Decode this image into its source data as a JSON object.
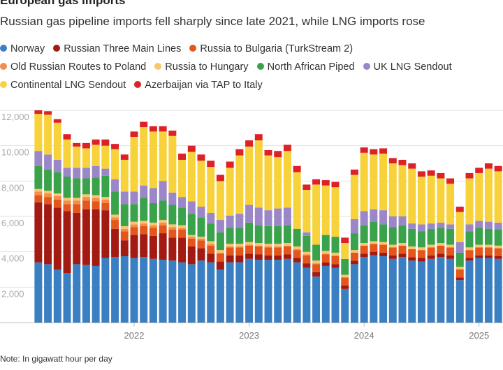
{
  "title": "European gas imports",
  "subtitle": "Russian gas pipeline imports fell sharply since late 2021, while LNG imports rose",
  "note": "Note: In gigawatt hour per day",
  "legend": [
    {
      "label": "Norway",
      "color": "#3a7fc1"
    },
    {
      "label": "Russian Three Main Lines",
      "color": "#a31a12"
    },
    {
      "label": "Russia to Bulgaria (TurkStream 2)",
      "color": "#e3571c"
    },
    {
      "label": "Old Russian Routes to Poland",
      "color": "#f28e4a"
    },
    {
      "label": "Russia to Hungary",
      "color": "#f9c56e"
    },
    {
      "label": "North African Piped",
      "color": "#3aa24a"
    },
    {
      "label": "UK LNG Sendout",
      "color": "#9b86c8"
    },
    {
      "label": "Continental LNG Sendout",
      "color": "#f8d23a"
    },
    {
      "label": "Azerbaijan via TAP to Italy",
      "color": "#dc2127"
    }
  ],
  "chart_data": {
    "type": "bar",
    "stacked": true,
    "title": "European gas imports",
    "subtitle": "Russian gas pipeline imports fell sharply since late 2021, while LNG imports rose",
    "ylim": [
      0,
      12000
    ],
    "yticks": [
      2000,
      4000,
      6000,
      8000,
      10000,
      12000
    ],
    "ytick_labels": [
      "2,000",
      "4,000",
      "6,000",
      "8,000",
      "10,000",
      "12,000"
    ],
    "x_ticks": [
      {
        "label": "2022",
        "index": 10
      },
      {
        "label": "2023",
        "index": 22
      },
      {
        "label": "2024",
        "index": 34
      },
      {
        "label": "2025",
        "index": 46
      }
    ],
    "categories": [
      "Mar 2021",
      "Apr 2021",
      "May 2021",
      "Jun 2021",
      "Jul 2021",
      "Aug 2021",
      "Sep 2021",
      "Oct 2021",
      "Nov 2021",
      "Dec 2021",
      "Jan 2022",
      "Feb 2022",
      "Mar 2022",
      "Apr 2022",
      "May 2022",
      "Jun 2022",
      "Jul 2022",
      "Aug 2022",
      "Sep 2022",
      "Oct 2022",
      "Nov 2022",
      "Dec 2022",
      "Jan 2023",
      "Feb 2023",
      "Mar 2023",
      "Apr 2023",
      "May 2023",
      "Jun 2023",
      "Jul 2023",
      "Aug 2023",
      "Sep 2023",
      "Oct 2023",
      "Nov 2023",
      "Dec 2023",
      "Jan 2024",
      "Feb 2024",
      "Mar 2024",
      "Apr 2024",
      "May 2024",
      "Jun 2024",
      "Jul 2024",
      "Aug 2024",
      "Sep 2024",
      "Oct 2024",
      "Nov 2024",
      "Dec 2024",
      "Jan 2025",
      "Feb 2025",
      "Mar 2025"
    ],
    "series": [
      {
        "name": "Norway",
        "color": "#3a7fc1",
        "values": [
          3400,
          3300,
          3000,
          2800,
          3300,
          3250,
          3200,
          3650,
          3700,
          3750,
          3650,
          3700,
          3600,
          3550,
          3500,
          3400,
          3300,
          3500,
          3400,
          3000,
          3400,
          3400,
          3600,
          3550,
          3550,
          3550,
          3600,
          3400,
          3100,
          2600,
          3200,
          3100,
          1900,
          3300,
          3700,
          3800,
          3750,
          3600,
          3700,
          3500,
          3450,
          3600,
          3700,
          3600,
          2400,
          3500,
          3650,
          3650,
          3600
        ]
      },
      {
        "name": "Russian Three Main Lines",
        "color": "#a31a12",
        "values": [
          3400,
          3400,
          3500,
          3500,
          2900,
          3150,
          3200,
          2700,
          1600,
          900,
          1300,
          1300,
          1300,
          1500,
          1300,
          1400,
          1000,
          700,
          500,
          450,
          400,
          400,
          300,
          300,
          250,
          250,
          250,
          250,
          250,
          250,
          200,
          200,
          200,
          200,
          200,
          200,
          200,
          200,
          200,
          200,
          200,
          200,
          200,
          200,
          150,
          150,
          150,
          150,
          150
        ]
      },
      {
        "name": "Russia to Bulgaria (TurkStream 2)",
        "color": "#e3571c",
        "values": [
          400,
          400,
          450,
          400,
          500,
          500,
          450,
          400,
          500,
          500,
          450,
          450,
          450,
          450,
          450,
          450,
          450,
          450,
          450,
          450,
          450,
          450,
          450,
          450,
          450,
          450,
          450,
          450,
          450,
          450,
          450,
          450,
          450,
          450,
          450,
          450,
          450,
          450,
          450,
          450,
          450,
          450,
          450,
          450,
          450,
          450,
          450,
          450,
          450
        ]
      },
      {
        "name": "Old Russian Routes to Poland",
        "color": "#f28e4a",
        "values": [
          200,
          200,
          200,
          200,
          200,
          200,
          200,
          200,
          150,
          150,
          150,
          150,
          150,
          150,
          150,
          100,
          100,
          100,
          100,
          50,
          50,
          50,
          50,
          50,
          50,
          50,
          50,
          50,
          50,
          50,
          50,
          50,
          0,
          0,
          0,
          0,
          0,
          0,
          0,
          0,
          0,
          0,
          0,
          0,
          0,
          0,
          0,
          0,
          0
        ]
      },
      {
        "name": "Russia to Hungary",
        "color": "#f9c56e",
        "values": [
          150,
          150,
          150,
          150,
          150,
          150,
          150,
          150,
          150,
          150,
          150,
          150,
          150,
          150,
          150,
          150,
          100,
          100,
          150,
          150,
          150,
          150,
          150,
          150,
          150,
          150,
          150,
          150,
          150,
          150,
          150,
          150,
          150,
          150,
          150,
          150,
          150,
          150,
          150,
          150,
          150,
          150,
          150,
          150,
          150,
          150,
          150,
          150,
          150
        ]
      },
      {
        "name": "North African Piped",
        "color": "#3aa24a",
        "values": [
          1300,
          1200,
          1200,
          1200,
          1100,
          900,
          1000,
          1200,
          1300,
          1250,
          1000,
          1300,
          1100,
          1100,
          1100,
          1000,
          1200,
          1100,
          1000,
          1000,
          900,
          900,
          1100,
          1000,
          1000,
          1000,
          1000,
          1000,
          900,
          900,
          900,
          900,
          900,
          950,
          1000,
          1100,
          1000,
          1000,
          1000,
          1000,
          900,
          900,
          850,
          900,
          800,
          900,
          950,
          900,
          900
        ]
      },
      {
        "name": "UK LNG Sendout",
        "color": "#9b86c8",
        "values": [
          850,
          850,
          700,
          500,
          600,
          600,
          650,
          400,
          700,
          700,
          700,
          700,
          850,
          1100,
          700,
          600,
          700,
          600,
          600,
          700,
          700,
          800,
          1000,
          1000,
          900,
          1000,
          1000,
          0,
          200,
          0,
          0,
          0,
          0,
          800,
          800,
          700,
          800,
          600,
          500,
          300,
          400,
          300,
          300,
          250,
          600,
          400,
          400,
          400,
          400
        ]
      },
      {
        "name": "Continental LNG Sendout",
        "color": "#f8d23a",
        "values": [
          2100,
          2250,
          2100,
          1600,
          1200,
          1100,
          1200,
          1300,
          1700,
          1800,
          3100,
          3300,
          3200,
          2800,
          3200,
          2100,
          2800,
          2600,
          2600,
          2200,
          2700,
          3300,
          3300,
          3800,
          3100,
          2900,
          3200,
          3200,
          2400,
          3400,
          2800,
          2800,
          900,
          2500,
          3300,
          3100,
          3200,
          3000,
          2900,
          3100,
          2700,
          2700,
          2500,
          2300,
          1700,
          2600,
          2700,
          3000,
          2900
        ]
      },
      {
        "name": "Azerbaijan via TAP to Italy",
        "color": "#dc2127",
        "values": [
          200,
          200,
          200,
          300,
          200,
          300,
          300,
          350,
          300,
          300,
          300,
          300,
          300,
          300,
          300,
          350,
          350,
          350,
          350,
          350,
          350,
          350,
          350,
          350,
          300,
          350,
          350,
          350,
          300,
          300,
          300,
          300,
          300,
          300,
          300,
          300,
          300,
          300,
          300,
          300,
          300,
          300,
          300,
          300,
          300,
          300,
          300,
          300,
          300
        ]
      }
    ]
  }
}
